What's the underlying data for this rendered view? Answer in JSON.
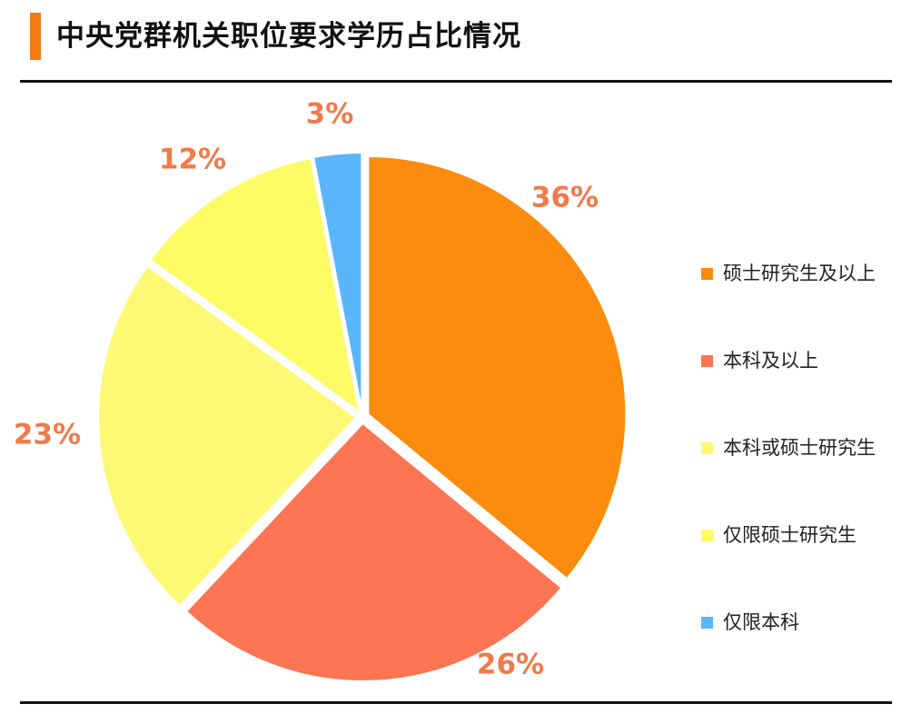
{
  "title": "中央党群机关职位要求学历占比情况",
  "accent_color": "#f27b14",
  "chart_data": {
    "type": "pie",
    "title": "中央党群机关职位要求学历占比情况",
    "slices": [
      {
        "name": "硕士研究生及以上",
        "value": 36,
        "label": "36%",
        "color": "#fb8c0e"
      },
      {
        "name": "本科及以上",
        "value": 26,
        "label": "26%",
        "color": "#fd7552"
      },
      {
        "name": "本科或硕士研究生",
        "value": 23,
        "label": "23%",
        "color": "#fdf975"
      },
      {
        "name": "仅限硕士研究生",
        "value": 12,
        "label": "12%",
        "color": "#fdfc65"
      },
      {
        "name": "仅限本科",
        "value": 3,
        "label": "3%",
        "color": "#5ab6fb"
      }
    ],
    "label_color": "#f07a4a",
    "legend_position": "right",
    "start_angle": "12 o'clock",
    "direction": "clockwise",
    "exploded": true
  }
}
